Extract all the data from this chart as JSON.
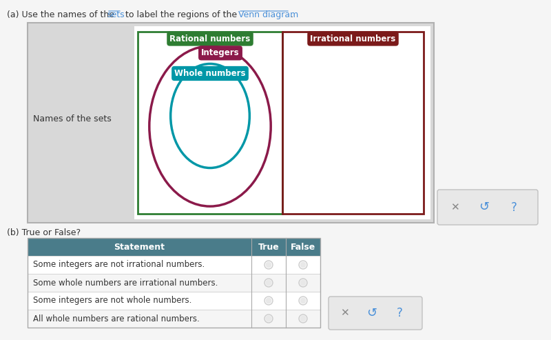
{
  "title_a": "(a) Use the names of the ",
  "title_a_link1": "sets",
  "title_a_mid": " to label the regions of the ",
  "title_a_link2": "Venn diagram",
  "title_a_end": ".",
  "title_b": "(b) True or False?",
  "bg_color": "#f0f0f0",
  "panel_bg": "#d6d6d6",
  "panel_border": "#a0a0a0",
  "left_label": "Names of the sets",
  "venn_left_rect_color": "#2e7d32",
  "venn_right_rect_color": "#7b1a1a",
  "venn_divider_color": "#2e7d32",
  "integers_ellipse_color": "#8b1a4a",
  "whole_numbers_ellipse_color": "#0097a7",
  "rational_label": "Rational numbers",
  "rational_label_bg": "#2e7d32",
  "rational_label_fg": "white",
  "irrational_label": "Irrational numbers",
  "irrational_label_bg": "#7b1a1a",
  "irrational_label_fg": "white",
  "integers_label": "Integers",
  "integers_label_bg": "#8b1a4a",
  "integers_label_fg": "white",
  "whole_label": "Whole numbers",
  "whole_label_bg": "#0097a7",
  "whole_label_fg": "white",
  "table_header_bg": "#4a7c8a",
  "table_header_fg": "white",
  "table_statements": [
    "Some integers are not irrational numbers.",
    "Some whole numbers are irrational numbers.",
    "Some integers are not whole numbers.",
    "All whole numbers are rational numbers."
  ],
  "button_bg": "#e8e8e8",
  "button_border": "#c0c0c0"
}
